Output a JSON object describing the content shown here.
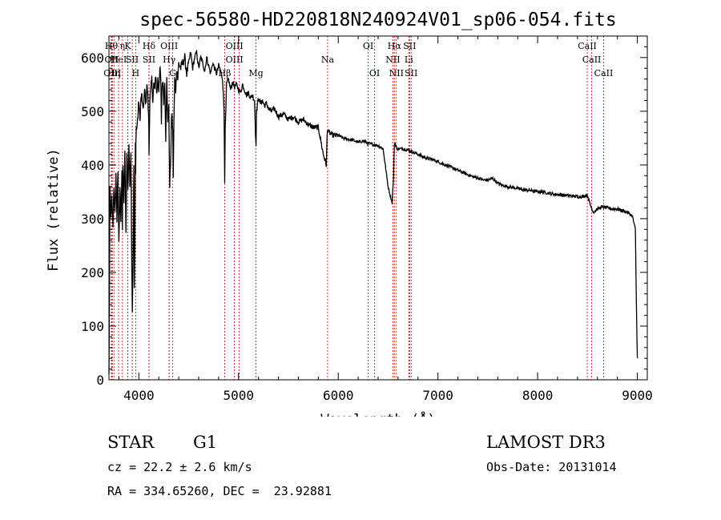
{
  "chart_data": {
    "type": "line",
    "title": "spec-56580-HD220818N240924V01_sp06-054.fits",
    "xlabel": "Wavelength (Å)",
    "ylabel": "Flux (relative)",
    "xlim": [
      3700,
      9100
    ],
    "ylim": [
      0,
      640
    ],
    "xticks": [
      4000,
      5000,
      6000,
      7000,
      8000,
      9000
    ],
    "yticks": [
      0,
      100,
      200,
      300,
      400,
      500,
      600
    ],
    "line_color": "#000000",
    "marker_color": "#cc0000",
    "series": [
      {
        "name": "flux",
        "x": [
          3700,
          3705,
          3710,
          3720,
          3730,
          3740,
          3750,
          3760,
          3770,
          3780,
          3790,
          3800,
          3810,
          3820,
          3830,
          3835,
          3840,
          3850,
          3860,
          3870,
          3880,
          3890,
          3900,
          3910,
          3920,
          3930,
          3935,
          3940,
          3950,
          3955,
          3960,
          3965,
          3968,
          3970,
          3975,
          3980,
          3990,
          4000,
          4010,
          4020,
          4030,
          4040,
          4050,
          4060,
          4070,
          4080,
          4090,
          4100,
          4102,
          4110,
          4120,
          4130,
          4140,
          4150,
          4160,
          4170,
          4180,
          4190,
          4200,
          4210,
          4220,
          4226,
          4230,
          4240,
          4250,
          4260,
          4270,
          4280,
          4290,
          4300,
          4305,
          4310,
          4320,
          4330,
          4340,
          4345,
          4350,
          4360,
          4370,
          4380,
          4390,
          4400,
          4420,
          4440,
          4460,
          4480,
          4500,
          4520,
          4540,
          4560,
          4580,
          4600,
          4620,
          4640,
          4660,
          4680,
          4700,
          4720,
          4740,
          4760,
          4780,
          4800,
          4820,
          4840,
          4855,
          4861,
          4866,
          4880,
          4900,
          4920,
          4940,
          4960,
          4980,
          5000,
          5020,
          5040,
          5060,
          5080,
          5100,
          5120,
          5140,
          5160,
          5170,
          5175,
          5180,
          5200,
          5220,
          5240,
          5260,
          5280,
          5300,
          5330,
          5360,
          5400,
          5450,
          5500,
          5550,
          5600,
          5650,
          5700,
          5750,
          5800,
          5850,
          5880,
          5890,
          5896,
          5910,
          5950,
          6000,
          6050,
          6100,
          6150,
          6200,
          6250,
          6300,
          6350,
          6400,
          6450,
          6500,
          6540,
          6555,
          6563,
          6570,
          6590,
          6650,
          6700,
          6750,
          6800,
          6850,
          6900,
          6950,
          7000,
          7050,
          7100,
          7150,
          7200,
          7250,
          7300,
          7350,
          7400,
          7450,
          7500,
          7550,
          7600,
          7650,
          7700,
          7750,
          7800,
          7850,
          7900,
          7950,
          8000,
          8050,
          8100,
          8150,
          8200,
          8250,
          8300,
          8350,
          8400,
          8450,
          8480,
          8500,
          8520,
          8540,
          8560,
          8600,
          8650,
          8700,
          8750,
          8800,
          8850,
          8900,
          8950,
          8980,
          8990,
          9000
        ],
        "y": [
          10,
          150,
          360,
          300,
          340,
          280,
          360,
          310,
          380,
          300,
          390,
          250,
          360,
          300,
          390,
          270,
          400,
          330,
          430,
          270,
          430,
          350,
          440,
          360,
          430,
          200,
          130,
          200,
          400,
          170,
          250,
          440,
          380,
          450,
          470,
          470,
          490,
          520,
          480,
          520,
          530,
          500,
          520,
          540,
          510,
          550,
          530,
          470,
          420,
          520,
          540,
          560,
          520,
          550,
          540,
          570,
          530,
          560,
          540,
          580,
          560,
          470,
          540,
          560,
          520,
          560,
          450,
          560,
          480,
          520,
          420,
          360,
          420,
          500,
          460,
          380,
          460,
          560,
          540,
          580,
          560,
          590,
          580,
          590,
          600,
          570,
          590,
          610,
          580,
          600,
          610,
          580,
          600,
          590,
          575,
          600,
          585,
          570,
          590,
          580,
          570,
          585,
          575,
          560,
          500,
          370,
          460,
          550,
          560,
          540,
          555,
          545,
          550,
          540,
          535,
          550,
          540,
          530,
          535,
          525,
          530,
          520,
          460,
          440,
          500,
          525,
          515,
          520,
          510,
          515,
          505,
          500,
          505,
          490,
          495,
          485,
          490,
          480,
          485,
          475,
          470,
          470,
          420,
          400,
          460,
          465,
          460,
          455,
          455,
          450,
          448,
          446,
          442,
          445,
          440,
          438,
          436,
          430,
          360,
          330,
          380,
          440,
          440,
          430,
          430,
          428,
          424,
          420,
          415,
          412,
          410,
          406,
          402,
          398,
          394,
          390,
          386,
          382,
          378,
          376,
          372,
          372,
          375,
          366,
          362,
          360,
          358,
          356,
          354,
          353,
          352,
          350,
          350,
          348,
          346,
          345,
          344,
          343,
          342,
          341,
          341,
          343,
          344,
          330,
          320,
          312,
          318,
          322,
          320,
          318,
          318,
          315,
          312,
          305,
          280,
          150,
          40
        ]
      }
    ],
    "line_markers": [
      {
        "w": 3724,
        "label": "Hθ",
        "row": 0
      },
      {
        "w": 3727,
        "label": "OII",
        "row": 1
      },
      {
        "w": 3734,
        "label": "OIII",
        "row": 2
      },
      {
        "w": 3750,
        "label": "Hη",
        "row": 2
      },
      {
        "w": 3797,
        "label": "HeI",
        "row": 1
      },
      {
        "w": 3835,
        "label": "η",
        "row": 0
      },
      {
        "w": 3889,
        "label": "K",
        "row": 0
      },
      {
        "w": 3934,
        "label": "SII",
        "row": 1
      },
      {
        "w": 3968,
        "label": "H",
        "row": 2
      },
      {
        "w": 4102,
        "label": "Hδ",
        "row": 0
      },
      {
        "w": 4102,
        "label": "SII",
        "row": 1
      },
      {
        "w": 4304,
        "label": "OIII",
        "row": 0
      },
      {
        "w": 4304,
        "label": "Hγ",
        "row": 1
      },
      {
        "w": 4340,
        "label": "G",
        "row": 2
      },
      {
        "w": 4861,
        "label": "Hβ",
        "row": 2
      },
      {
        "w": 4959,
        "label": "OIII",
        "row": 0
      },
      {
        "w": 4959,
        "label": "OIII",
        "row": 1
      },
      {
        "w": 5007,
        "label": "",
        "row": 0
      },
      {
        "w": 5175,
        "label": "Mg",
        "row": 2
      },
      {
        "w": 5893,
        "label": "Na",
        "row": 1
      },
      {
        "w": 6300,
        "label": "OI",
        "row": 0
      },
      {
        "w": 6364,
        "label": "OI",
        "row": 2
      },
      {
        "w": 6548,
        "label": "NII",
        "row": 1
      },
      {
        "w": 6563,
        "label": "Hα",
        "row": 0
      },
      {
        "w": 6583,
        "label": "NII",
        "row": 2
      },
      {
        "w": 6708,
        "label": "Li",
        "row": 1
      },
      {
        "w": 6716,
        "label": "SII",
        "row": 0
      },
      {
        "w": 6731,
        "label": "SII",
        "row": 2
      },
      {
        "w": 8498,
        "label": "CaII",
        "row": 0
      },
      {
        "w": 8542,
        "label": "CaII",
        "row": 1
      },
      {
        "w": 8662,
        "label": "CaII",
        "row": 2
      }
    ]
  },
  "info": {
    "object_class": "STAR",
    "subclass": "G1",
    "survey": "LAMOST DR3",
    "cz": "cz = 22.2 ± 2.6 km/s",
    "obs_date": "Obs-Date: 20131014",
    "coords": "RA = 334.65260, DEC =  23.92881"
  }
}
